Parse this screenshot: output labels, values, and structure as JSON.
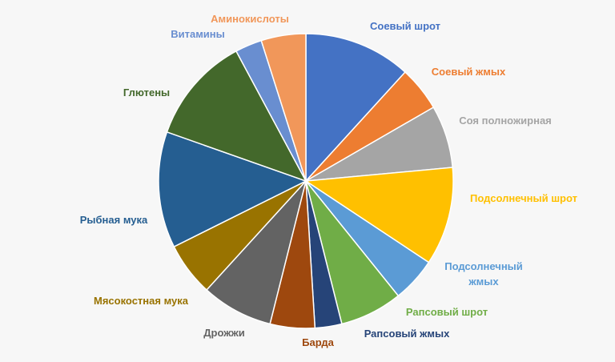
{
  "chart_data": {
    "type": "pie",
    "title": "",
    "start_angle_deg": 0,
    "direction": "clockwise",
    "slices": [
      {
        "label": "Соевый шрот",
        "value": 12.0,
        "color": "#4472c4",
        "label_lines": [
          "Соевый шрот"
        ]
      },
      {
        "label": "Соевый жмых",
        "value": 5.0,
        "color": "#ed7d31",
        "label_lines": [
          "Соевый жмых"
        ]
      },
      {
        "label": "Соя полножирная",
        "value": 7.0,
        "color": "#a5a5a5",
        "label_lines": [
          "Соя полножирная"
        ]
      },
      {
        "label": "Подсолнечный шрот",
        "value": 11.0,
        "color": "#ffc000",
        "label_lines": [
          "Подсолнечный шрот"
        ]
      },
      {
        "label": "Подсолнечный жмых",
        "value": 5.0,
        "color": "#5b9bd5",
        "label_lines": [
          "Подсолнечный",
          "жмых"
        ]
      },
      {
        "label": "Рапсовый шрот",
        "value": 7.0,
        "color": "#70ad47",
        "label_lines": [
          "Рапсовый шрот"
        ]
      },
      {
        "label": "Рапсовый жмых",
        "value": 3.0,
        "color": "#264478",
        "label_lines": [
          "Рапсовый жмых"
        ]
      },
      {
        "label": "Барда",
        "value": 5.0,
        "color": "#9e480e",
        "label_lines": [
          "Барда"
        ]
      },
      {
        "label": "Дрожжи",
        "value": 8.0,
        "color": "#636363",
        "label_lines": [
          "Дрожжи"
        ]
      },
      {
        "label": "Мясокостная мука",
        "value": 6.0,
        "color": "#997300",
        "label_lines": [
          "Мясокостная мука"
        ]
      },
      {
        "label": "Рыбная мука",
        "value": 13.0,
        "color": "#255e91",
        "label_lines": [
          "Рыбная мука"
        ]
      },
      {
        "label": "Глютены",
        "value": 12.0,
        "color": "#43682b",
        "label_lines": [
          "Глютены"
        ]
      },
      {
        "label": "Витамины",
        "value": 3.0,
        "color": "#698ed0",
        "label_lines": [
          "Витамины"
        ]
      },
      {
        "label": "Аминокислоты",
        "value": 5.0,
        "color": "#f1975a",
        "label_lines": [
          "Аминокислоты"
        ]
      }
    ]
  }
}
